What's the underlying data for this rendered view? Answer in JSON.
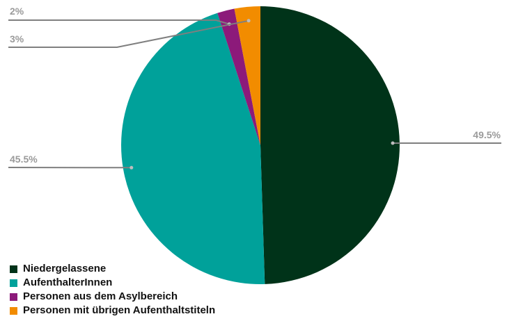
{
  "chart_data": {
    "type": "pie",
    "title": "",
    "start_angle_deg": 0,
    "direction": "clockwise",
    "legend_position": "bottom-left",
    "slices": [
      {
        "name": "Niedergelassene",
        "value": 49.5,
        "label": "49.5%",
        "color": "#003319"
      },
      {
        "name": "AufenthalterInnen",
        "value": 45.5,
        "label": "45.5%",
        "color": "#00a19a"
      },
      {
        "name": "Personen aus dem Asylbereich",
        "value": 2,
        "label": "2%",
        "color": "#8c1a7a"
      },
      {
        "name": "Personen mit übrigen Aufenthaltstiteln",
        "value": 3,
        "label": "3%",
        "color": "#f28c00"
      }
    ]
  }
}
